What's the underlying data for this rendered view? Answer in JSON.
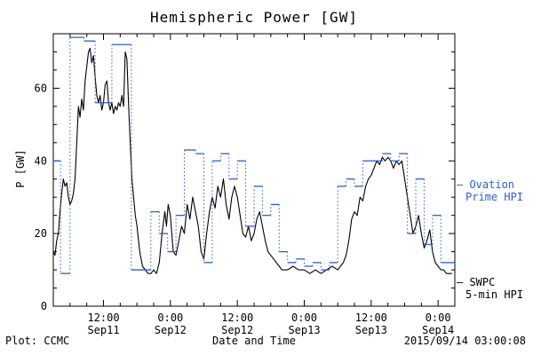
{
  "title": "Hemispheric Power [GW]",
  "ylabel": "P [GW]",
  "xlabel": "Date and Time",
  "footer_left": "Plot: CCMC",
  "footer_right": "2015/09/14 03:00:08",
  "legend": {
    "ovation": [
      "– Ovation",
      "Prime HPI"
    ],
    "swpc": [
      "– SWPC",
      "5-min HPI"
    ]
  },
  "colors": {
    "ovation": "#2e5ec9",
    "swpc": "#000000",
    "frame": "#000000"
  },
  "chart_data": {
    "type": "line",
    "title": "Hemispheric Power [GW]",
    "xlabel": "Date and Time",
    "ylabel": "P [GW]",
    "ylim": [
      0,
      75
    ],
    "xlim_hours": [
      3,
      75
    ],
    "x_unit": "hours since 2015-09-11 00:00",
    "grid": false,
    "legend_position": "right-outside",
    "yticks": [
      0,
      20,
      40,
      60
    ],
    "xticks": [
      {
        "hour": 12,
        "time": "12:00",
        "date": "Sep11"
      },
      {
        "hour": 24,
        "time": "0:00",
        "date": "Sep12"
      },
      {
        "hour": 36,
        "time": "12:00",
        "date": "Sep12"
      },
      {
        "hour": 48,
        "time": "0:00",
        "date": "Sep13"
      },
      {
        "hour": 60,
        "time": "12:00",
        "date": "Sep13"
      },
      {
        "hour": 72,
        "time": "0:00",
        "date": "Sep14"
      }
    ],
    "series": [
      {
        "name": "SWPC 5-min HPI",
        "style": "line",
        "color": "#000000",
        "x": [
          3,
          3.3,
          3.6,
          3.9,
          4.2,
          4.5,
          4.8,
          5.1,
          5.4,
          5.7,
          6,
          6.3,
          6.6,
          6.9,
          7.2,
          7.5,
          7.8,
          8.1,
          8.4,
          8.7,
          9,
          9.3,
          9.6,
          9.9,
          10.2,
          10.5,
          10.8,
          11.1,
          11.4,
          11.7,
          12,
          12.3,
          12.6,
          12.9,
          13.2,
          13.5,
          13.8,
          14.1,
          14.4,
          14.7,
          15,
          15.3,
          15.6,
          15.9,
          16.2,
          16.5,
          16.8,
          17.1,
          17.4,
          17.7,
          18,
          18.5,
          19,
          19.5,
          20,
          20.5,
          21,
          21.5,
          22,
          22.5,
          23,
          23.3,
          23.6,
          24,
          24.5,
          25,
          25.5,
          26,
          26.5,
          27,
          27.5,
          28,
          28.5,
          29,
          29.5,
          30,
          30.5,
          31,
          31.5,
          32,
          32.5,
          33,
          33.5,
          34,
          34.5,
          35,
          35.5,
          36,
          36.5,
          37,
          37.5,
          38,
          38.5,
          39,
          39.5,
          40,
          40.5,
          41,
          41.5,
          42,
          42.5,
          43,
          43.5,
          44,
          45,
          46,
          47,
          48,
          49,
          50,
          51,
          52,
          53,
          54,
          55,
          55.5,
          56,
          56.5,
          57,
          57.5,
          58,
          58.5,
          59,
          59.5,
          60,
          60.5,
          61,
          61.5,
          62,
          62.5,
          63,
          63.5,
          64,
          64.5,
          65,
          65.5,
          66,
          66.5,
          67,
          67.5,
          68,
          68.5,
          69,
          69.5,
          70,
          70.5,
          71,
          71.5,
          72,
          72.5,
          73,
          73.5,
          74,
          74.5
        ],
        "y": [
          15,
          14,
          18,
          20,
          26,
          31,
          35,
          33,
          34,
          30,
          28,
          29,
          31,
          35,
          45,
          55,
          52,
          57,
          54,
          62,
          66,
          70,
          71,
          67,
          69,
          63,
          58,
          56,
          58,
          54,
          56,
          61,
          62,
          56,
          54,
          56,
          53,
          55,
          54,
          56,
          55,
          58,
          55,
          70,
          68,
          55,
          45,
          35,
          30,
          25,
          22,
          15,
          11,
          10,
          9,
          9,
          10,
          9,
          12,
          20,
          26,
          22,
          28,
          25,
          15,
          14,
          18,
          22,
          20,
          28,
          24,
          30,
          26,
          22,
          15,
          13,
          20,
          26,
          30,
          27,
          33,
          30,
          35,
          28,
          24,
          30,
          33,
          30,
          25,
          20,
          19,
          22,
          18,
          20,
          24,
          26,
          22,
          18,
          15,
          14,
          13,
          12,
          11,
          10,
          10,
          11,
          10,
          10,
          9,
          10,
          9,
          10,
          11,
          10,
          12,
          14,
          18,
          24,
          26,
          25,
          30,
          29,
          33,
          35,
          36,
          38,
          40,
          39,
          41,
          40,
          41,
          40,
          38,
          40,
          39,
          40,
          35,
          30,
          25,
          20,
          22,
          25,
          20,
          16,
          18,
          21,
          15,
          12,
          11,
          10,
          10,
          9,
          9,
          9
        ]
      },
      {
        "name": "Ovation Prime HPI",
        "style": "step",
        "color": "#2e5ec9",
        "segments": [
          [
            3,
            4.3,
            40
          ],
          [
            4.3,
            6,
            9
          ],
          [
            6,
            8.5,
            74
          ],
          [
            8.5,
            10.5,
            73
          ],
          [
            10.5,
            13.5,
            56
          ],
          [
            13.5,
            17,
            72
          ],
          [
            17,
            20.5,
            10
          ],
          [
            20.5,
            22,
            26
          ],
          [
            22,
            23.5,
            20
          ],
          [
            23.5,
            25,
            15
          ],
          [
            25,
            26.5,
            25
          ],
          [
            26.5,
            28.5,
            43
          ],
          [
            28.5,
            30,
            42
          ],
          [
            30,
            31.5,
            12
          ],
          [
            31.5,
            33,
            40
          ],
          [
            33,
            34.5,
            42
          ],
          [
            34.5,
            36,
            35
          ],
          [
            36,
            37.5,
            40
          ],
          [
            37.5,
            39,
            22
          ],
          [
            39,
            40.5,
            33
          ],
          [
            40.5,
            42,
            25
          ],
          [
            42,
            43.5,
            28
          ],
          [
            43.5,
            45,
            15
          ],
          [
            45,
            46.5,
            12
          ],
          [
            46.5,
            48,
            13
          ],
          [
            48,
            49.5,
            11
          ],
          [
            49.5,
            51,
            12
          ],
          [
            51,
            52.5,
            10
          ],
          [
            52.5,
            54,
            12
          ],
          [
            54,
            55.5,
            33
          ],
          [
            55.5,
            57,
            35
          ],
          [
            57,
            58.5,
            33
          ],
          [
            58.5,
            60,
            40
          ],
          [
            60,
            62,
            40
          ],
          [
            62,
            63.5,
            42
          ],
          [
            63.5,
            65,
            40
          ],
          [
            65,
            66.5,
            42
          ],
          [
            66.5,
            68,
            20
          ],
          [
            68,
            69.5,
            35
          ],
          [
            69.5,
            71,
            17
          ],
          [
            71,
            72.5,
            25
          ],
          [
            72.5,
            75,
            12
          ]
        ]
      }
    ]
  }
}
